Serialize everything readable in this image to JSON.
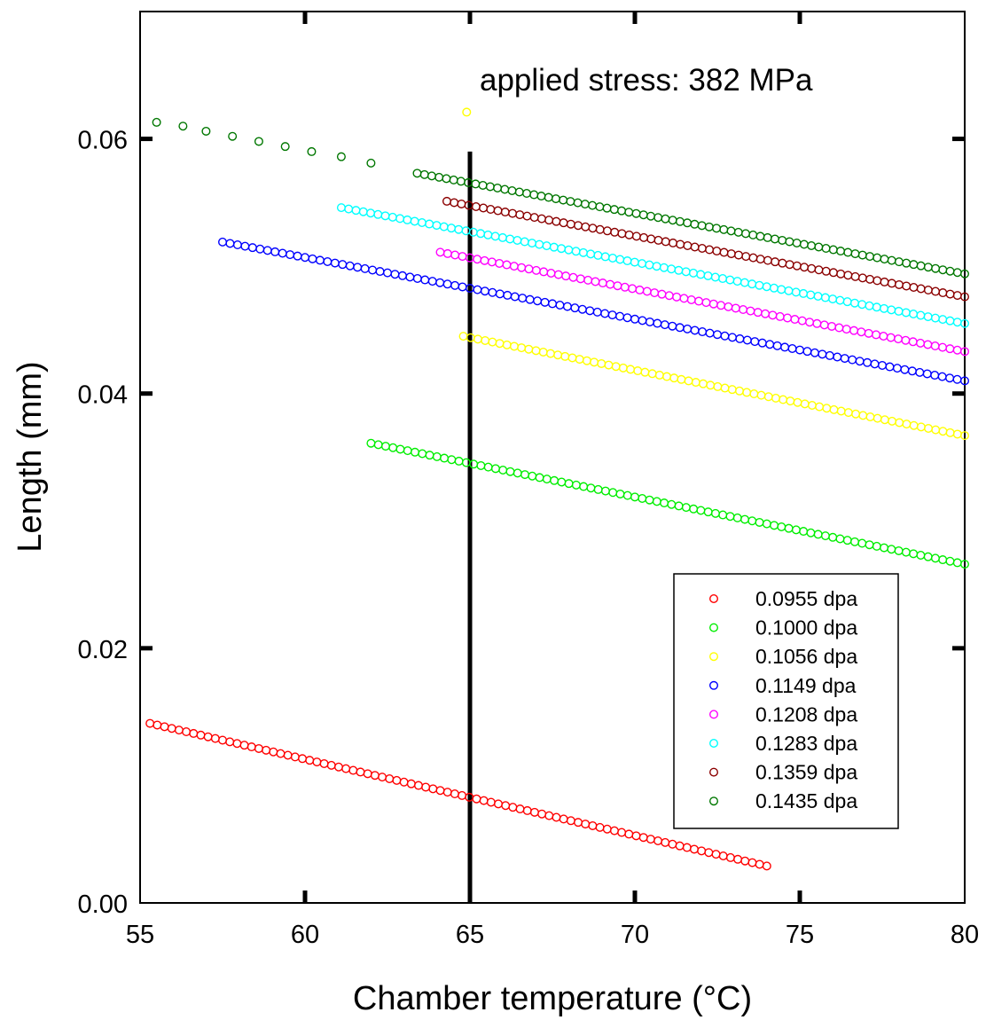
{
  "chart_data": {
    "type": "scatter",
    "title": "",
    "xlabel": "Chamber temperature (°C)",
    "ylabel": "Length (mm)",
    "xlim": [
      55,
      80
    ],
    "ylim": [
      0.0,
      0.07
    ],
    "x_ticks": [
      55,
      60,
      65,
      70,
      75,
      80
    ],
    "x_tick_labels": [
      "55",
      "60",
      "65",
      "70",
      "75",
      "80"
    ],
    "y_ticks": [
      0.0,
      0.02,
      0.04,
      0.06
    ],
    "y_tick_labels": [
      "0.00",
      "0.02",
      "0.04",
      "0.06"
    ],
    "grid": false,
    "legend_position": "bottom-right",
    "marker": "open-circle",
    "annotation": "applied stress: 382 MPa",
    "reference_line": {
      "x": 65,
      "y_range": [
        0.0,
        0.059
      ],
      "color": "#000000"
    },
    "series": [
      {
        "name": "0.0955 dpa",
        "color": "#ff0000",
        "x_start": 55.3,
        "x_end": 74.0,
        "y_start": 0.0141,
        "y_end": 0.0029,
        "points": 86
      },
      {
        "name": "0.1000 dpa",
        "color": "#00ee00",
        "x_start": 62.0,
        "x_end": 80.0,
        "y_start": 0.0361,
        "y_end": 0.0266,
        "points": 82
      },
      {
        "name": "0.1056 dpa",
        "color": "#ffff00",
        "x_start": 64.8,
        "x_end": 80.0,
        "y_start": 0.0445,
        "y_end": 0.0367,
        "points": 70,
        "extra_points": [
          {
            "x": 64.9,
            "y": 0.0621
          }
        ]
      },
      {
        "name": "0.1149 dpa",
        "color": "#0000ff",
        "x_start": 57.5,
        "x_end": 80.0,
        "y_start": 0.0519,
        "y_end": 0.041,
        "points": 100
      },
      {
        "name": "0.1208 dpa",
        "color": "#ff00ff",
        "x_start": 64.1,
        "x_end": 80.0,
        "y_start": 0.0511,
        "y_end": 0.0433,
        "points": 72
      },
      {
        "name": "0.1283 dpa",
        "color": "#00ffff",
        "x_start": 61.1,
        "x_end": 80.0,
        "y_start": 0.0546,
        "y_end": 0.0455,
        "points": 86
      },
      {
        "name": "0.1359 dpa",
        "color": "#8b0000",
        "x_start": 64.3,
        "x_end": 80.0,
        "y_start": 0.0551,
        "y_end": 0.0476,
        "points": 72
      },
      {
        "name": "0.1435 dpa",
        "color": "#007700",
        "x_start": 63.4,
        "x_end": 80.0,
        "y_start": 0.0573,
        "y_end": 0.0494,
        "points": 76,
        "extra_points": [
          {
            "x": 55.5,
            "y": 0.0613
          },
          {
            "x": 56.3,
            "y": 0.061
          },
          {
            "x": 57.0,
            "y": 0.0606
          },
          {
            "x": 57.8,
            "y": 0.0602
          },
          {
            "x": 58.6,
            "y": 0.0598
          },
          {
            "x": 59.4,
            "y": 0.0594
          },
          {
            "x": 60.2,
            "y": 0.059
          },
          {
            "x": 61.1,
            "y": 0.0586
          },
          {
            "x": 62.0,
            "y": 0.0581
          }
        ]
      }
    ]
  }
}
